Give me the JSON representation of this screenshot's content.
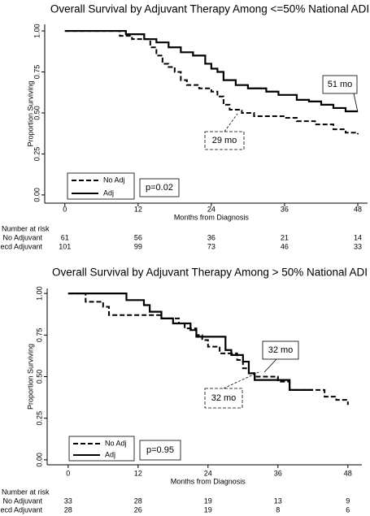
{
  "chart_data": [
    {
      "type": "line",
      "step": true,
      "title": "Overall Survival by Adjuvant Therapy Among <=50% National ADI",
      "x_label": "Months from Diagnosis",
      "y_label": "Proportion Surviving",
      "xlim": [
        -3.3,
        49.6
      ],
      "xticks": [
        0,
        12,
        24,
        36,
        48
      ],
      "ylim": [
        -0.05,
        1.04
      ],
      "yticks": [
        {
          "value": 0,
          "label": "0.00"
        },
        {
          "value": 0.25,
          "label": "0.25"
        },
        {
          "value": 0.5,
          "label": "0.50"
        },
        {
          "value": 0.75,
          "label": "0.75"
        },
        {
          "value": 1,
          "label": "1.00"
        }
      ],
      "series": [
        {
          "name": "No Adj",
          "color": "#000000",
          "dash": true,
          "x": [
            0,
            9,
            11,
            14,
            15,
            16,
            17,
            18,
            19,
            20,
            22,
            24,
            25,
            26,
            27,
            29,
            31,
            36,
            38,
            41,
            44,
            46,
            48
          ],
          "values": [
            1.0,
            0.97,
            0.95,
            0.9,
            0.85,
            0.8,
            0.78,
            0.75,
            0.7,
            0.67,
            0.65,
            0.63,
            0.6,
            0.55,
            0.52,
            0.5,
            0.48,
            0.47,
            0.45,
            0.43,
            0.4,
            0.38,
            0.37
          ]
        },
        {
          "name": "Adj",
          "color": "#000000",
          "dash": false,
          "x": [
            0,
            10,
            13,
            15,
            17,
            19,
            21,
            23,
            24,
            25,
            26,
            28,
            30,
            33,
            35,
            38,
            40,
            42,
            44,
            46,
            48
          ],
          "values": [
            1.0,
            0.98,
            0.95,
            0.93,
            0.9,
            0.87,
            0.85,
            0.8,
            0.77,
            0.75,
            0.7,
            0.67,
            0.65,
            0.63,
            0.61,
            0.58,
            0.57,
            0.55,
            0.53,
            0.51,
            0.51
          ]
        }
      ],
      "annotations": [
        "51 mo",
        "29 mo"
      ],
      "p_value": "p=0.02",
      "risk_table": {
        "title": "Number at risk",
        "rows": [
          {
            "name": "No Adjuvant",
            "values": [
              61,
              56,
              36,
              21,
              14
            ]
          },
          {
            "name": "Recd Adjuvant",
            "values": [
              101,
              99,
              73,
              46,
              33
            ]
          }
        ]
      }
    },
    {
      "type": "line",
      "step": true,
      "title": "Overall Survival by Adjuvant Therapy Among > 50% National ADI",
      "x_label": "Months from Diagnosis",
      "y_label": "Proportion Surviving",
      "xlim": [
        -3.6,
        50.4
      ],
      "xticks": [
        0,
        12,
        24,
        36,
        48
      ],
      "ylim": [
        -0.03,
        1.03
      ],
      "yticks": [
        {
          "value": 0,
          "label": "0.00"
        },
        {
          "value": 0.25,
          "label": "0.25"
        },
        {
          "value": 0.5,
          "label": "0.50"
        },
        {
          "value": 0.75,
          "label": "0.75"
        },
        {
          "value": 1,
          "label": "1.00"
        }
      ],
      "series": [
        {
          "name": "No Adj",
          "color": "#000000",
          "dash": true,
          "x": [
            0,
            3,
            6,
            7,
            16,
            19,
            20,
            22,
            23,
            24,
            26,
            29,
            30,
            31,
            32,
            36,
            38,
            44,
            46,
            48
          ],
          "values": [
            1.0,
            0.95,
            0.92,
            0.87,
            0.85,
            0.82,
            0.79,
            0.75,
            0.72,
            0.68,
            0.64,
            0.6,
            0.55,
            0.52,
            0.5,
            0.47,
            0.42,
            0.38,
            0.36,
            0.33
          ]
        },
        {
          "name": "Adj",
          "color": "#000000",
          "dash": false,
          "x": [
            0,
            10,
            13,
            14,
            16,
            18,
            21,
            22,
            27,
            28,
            30,
            31,
            32,
            38,
            42
          ],
          "values": [
            1.0,
            0.96,
            0.93,
            0.89,
            0.85,
            0.82,
            0.78,
            0.74,
            0.66,
            0.63,
            0.59,
            0.52,
            0.48,
            0.42,
            0.42
          ]
        }
      ],
      "annotations": [
        "32 mo",
        "32 mo"
      ],
      "p_value": "p=0.95",
      "risk_table": {
        "title": "Number at risk",
        "rows": [
          {
            "name": "No Adjuvant",
            "values": [
              33,
              28,
              19,
              13,
              9
            ]
          },
          {
            "name": "Recd Adjuvant",
            "values": [
              28,
              26,
              19,
              8,
              6
            ]
          }
        ]
      }
    }
  ]
}
